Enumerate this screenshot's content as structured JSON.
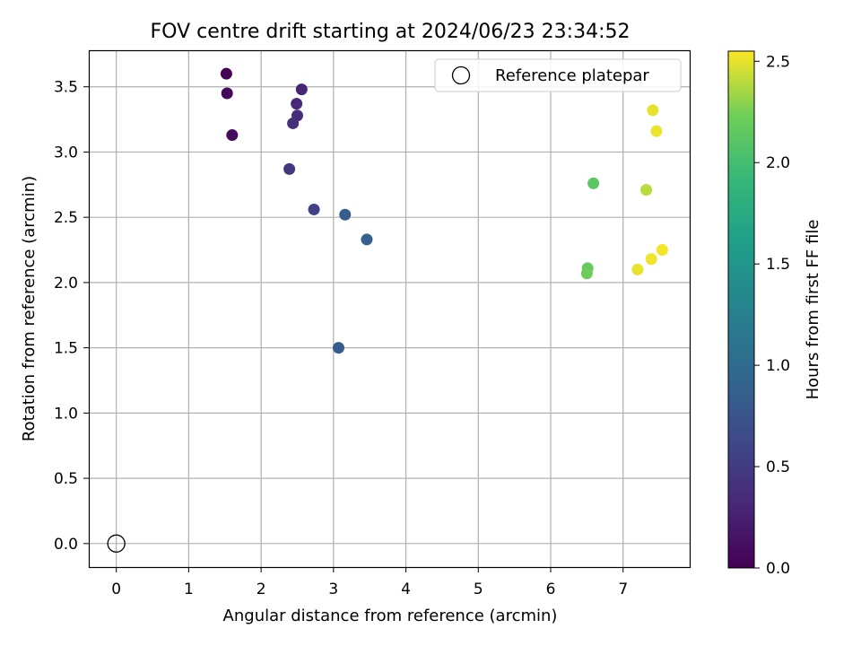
{
  "chart_data": {
    "type": "scatter",
    "title": "FOV centre drift starting at 2024/06/23 23:34:52",
    "xlabel": "Angular distance from reference (arcmin)",
    "ylabel": "Rotation from reference (arcmin)",
    "xlim": [
      -0.38,
      7.92
    ],
    "ylim": [
      -0.18,
      3.78
    ],
    "xticks": [
      0,
      1,
      2,
      3,
      4,
      5,
      6,
      7
    ],
    "xtick_labels": [
      "0",
      "1",
      "2",
      "3",
      "4",
      "5",
      "6",
      "7"
    ],
    "yticks": [
      0.0,
      0.5,
      1.0,
      1.5,
      2.0,
      2.5,
      3.0,
      3.5
    ],
    "ytick_labels": [
      "0.0",
      "0.5",
      "1.0",
      "1.5",
      "2.0",
      "2.5",
      "3.0",
      "3.5"
    ],
    "grid": true,
    "legend": {
      "position": "top-right",
      "entries": [
        {
          "label": "Reference platepar",
          "marker": "hollow-circle"
        }
      ]
    },
    "reference_point": {
      "label": "Reference platepar",
      "x": 0.0,
      "y": 0.0
    },
    "colorbar": {
      "label": "Hours from first FF file",
      "colormap": "viridis",
      "range": [
        0.0,
        2.55
      ],
      "ticks": [
        0.0,
        0.5,
        1.0,
        1.5,
        2.0,
        2.5
      ],
      "tick_labels": [
        "0.0",
        "0.5",
        "1.0",
        "1.5",
        "2.0",
        "2.5"
      ]
    },
    "series": [
      {
        "points": [
          {
            "x": 1.52,
            "y": 3.6,
            "hours": 0.0
          },
          {
            "x": 1.53,
            "y": 3.45,
            "hours": 0.05
          },
          {
            "x": 1.6,
            "y": 3.13,
            "hours": 0.08
          },
          {
            "x": 2.56,
            "y": 3.48,
            "hours": 0.3
          },
          {
            "x": 2.49,
            "y": 3.37,
            "hours": 0.33
          },
          {
            "x": 2.5,
            "y": 3.28,
            "hours": 0.36
          },
          {
            "x": 2.44,
            "y": 3.22,
            "hours": 0.39
          },
          {
            "x": 2.39,
            "y": 2.87,
            "hours": 0.46
          },
          {
            "x": 2.73,
            "y": 2.56,
            "hours": 0.56
          },
          {
            "x": 3.16,
            "y": 2.52,
            "hours": 0.85
          },
          {
            "x": 3.46,
            "y": 2.33,
            "hours": 0.88
          },
          {
            "x": 3.07,
            "y": 1.5,
            "hours": 0.82
          },
          {
            "x": 6.59,
            "y": 2.76,
            "hours": 2.12
          },
          {
            "x": 6.51,
            "y": 2.11,
            "hours": 2.18
          },
          {
            "x": 6.5,
            "y": 2.07,
            "hours": 2.22
          },
          {
            "x": 7.2,
            "y": 2.1,
            "hours": 2.5
          },
          {
            "x": 7.32,
            "y": 2.71,
            "hours": 2.4
          },
          {
            "x": 7.39,
            "y": 2.18,
            "hours": 2.52
          },
          {
            "x": 7.54,
            "y": 2.25,
            "hours": 2.53
          },
          {
            "x": 7.41,
            "y": 3.32,
            "hours": 2.5
          },
          {
            "x": 7.46,
            "y": 3.16,
            "hours": 2.51
          }
        ]
      }
    ]
  }
}
